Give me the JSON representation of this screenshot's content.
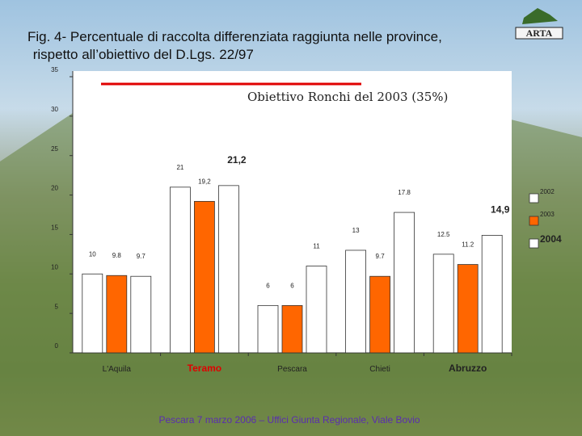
{
  "slide_title": "Fig. 4- Percentuale di raccolta differenziata raggiunta nelle province, rispetto all’obiettivo del D.Lgs. 22/97",
  "logo": "ARTA",
  "footer": "Pescara 7 marzo 2006 – Uffici Giunta Regionale, Viale Bovio",
  "chart_data": {
    "type": "bar",
    "annotation": "Obiettivo Ronchi del 2003 (35%)",
    "target": 35,
    "categories": [
      "L'Aquila",
      "Teramo",
      "Pescara",
      "Chieti",
      "Abruzzo"
    ],
    "series": [
      {
        "name": "2002",
        "color": "#ffffff",
        "values": [
          10,
          21,
          6,
          13,
          12.5
        ],
        "value_labels": [
          "10",
          "21",
          "6",
          "13",
          "12.5"
        ]
      },
      {
        "name": "2003",
        "color": "#ff6600",
        "values": [
          9.8,
          19.2,
          6,
          9.7,
          11.2
        ],
        "value_labels": [
          "9.8",
          "19,2",
          "6",
          "9.7",
          "11.2"
        ]
      },
      {
        "name": "2004",
        "color": "#ffffff",
        "values": [
          9.7,
          21.2,
          11,
          17.8,
          14.9
        ],
        "value_labels": [
          "9.7",
          "21,2",
          "11",
          "17.8",
          "14,9"
        ]
      }
    ],
    "ylim": [
      0,
      35
    ],
    "yticks": [
      0,
      5,
      10,
      15,
      20,
      25,
      30,
      35
    ],
    "grid": false,
    "legend": "right"
  }
}
